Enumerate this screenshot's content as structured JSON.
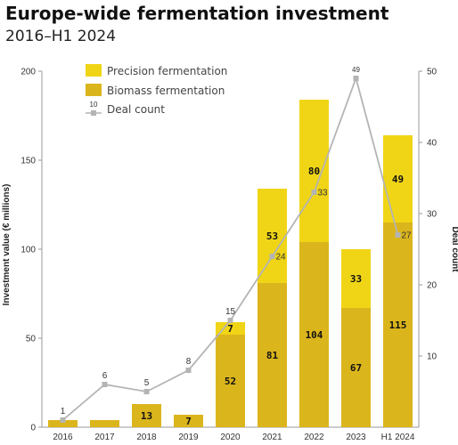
{
  "header": {
    "title": "Europe-wide fermentation investment",
    "subtitle": "2016–H1 2024"
  },
  "chart_data": {
    "type": "bar",
    "stacked": true,
    "categories": [
      "2016",
      "2017",
      "2018",
      "2019",
      "2020",
      "2021",
      "2022",
      "2023",
      "H1 2024"
    ],
    "series": [
      {
        "name": "Biomass fermentation",
        "color": "#dbb51c",
        "values": [
          4,
          4,
          13,
          7,
          52,
          81,
          104,
          67,
          115
        ],
        "labels": [
          "",
          "",
          "13",
          "7",
          "52",
          "81",
          "104",
          "67",
          "115"
        ]
      },
      {
        "name": "Precision fermentation",
        "color": "#f0d516",
        "values": [
          0,
          0,
          0,
          0,
          7,
          53,
          80,
          33,
          49
        ],
        "labels": [
          "",
          "",
          "",
          "",
          "7",
          "53",
          "80",
          "33",
          "49"
        ]
      }
    ],
    "line": {
      "name": "Deal count",
      "color": "#b4b4b4",
      "values": [
        1,
        6,
        5,
        8,
        15,
        24,
        33,
        49,
        27
      ],
      "labels": [
        "1",
        "6",
        "5",
        "8",
        "15",
        "24",
        "33",
        "49",
        "27"
      ]
    },
    "legend_marker_label": "10",
    "ylabel": "Investment value (€ millions)",
    "y2label": "Deal count",
    "ylim": [
      0,
      200
    ],
    "yticks": [
      "0",
      "50",
      "100",
      "150",
      "200"
    ],
    "y2lim": [
      0,
      50
    ],
    "y2ticks": [
      "10",
      "20",
      "30",
      "40",
      "50"
    ],
    "legend_position": "top-left",
    "grid": false
  }
}
